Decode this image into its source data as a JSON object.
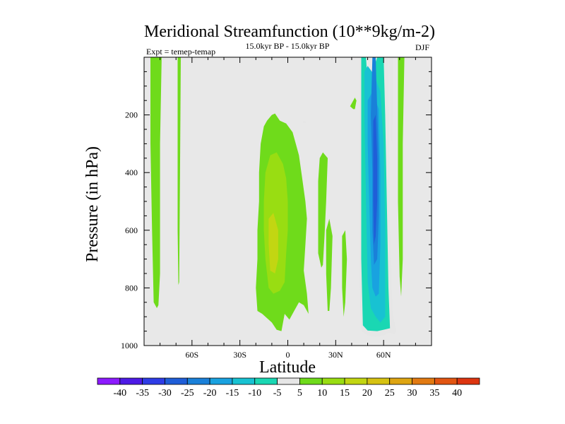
{
  "chart_data": {
    "type": "contour",
    "title": "Meridional Streamfunction (10**9kg/m-2)",
    "experiment_label": "Expt = temep-temap",
    "period_label": "15.0kyr BP - 15.0kyr BP",
    "season_label": "DJF",
    "xlabel": "Latitude",
    "ylabel": "Pressure (in hPa)",
    "xlim": [
      -90,
      90
    ],
    "ylim": [
      1000,
      0
    ],
    "x_ticks": [
      {
        "value": -60,
        "label": "60S"
      },
      {
        "value": -30,
        "label": "30S"
      },
      {
        "value": 0,
        "label": "0"
      },
      {
        "value": 30,
        "label": "30N"
      },
      {
        "value": 60,
        "label": "60N"
      }
    ],
    "y_ticks": [
      {
        "value": 200,
        "label": "200"
      },
      {
        "value": 400,
        "label": "400"
      },
      {
        "value": 600,
        "label": "600"
      },
      {
        "value": 800,
        "label": "800"
      },
      {
        "value": 1000,
        "label": "1000"
      }
    ],
    "background_color": "#e8e8e8",
    "colorbar": {
      "boundaries": [
        -40,
        -35,
        -30,
        -25,
        -20,
        -15,
        -10,
        -5,
        5,
        10,
        15,
        20,
        25,
        30,
        35,
        40
      ],
      "colors": [
        "#8c1aff",
        "#4d1ae6",
        "#2e3ce6",
        "#1f5ed8",
        "#1a80d9",
        "#19a2e0",
        "#18c2d2",
        "#1ad7b3",
        "#e6e6e6",
        "#6fdb1b",
        "#99dd12",
        "#c2d612",
        "#d6c212",
        "#dea512",
        "#e27a12",
        "#e25512",
        "#dd3510"
      ]
    },
    "regions": [
      {
        "level": 5,
        "polygon": [
          [
            -86,
            0
          ],
          [
            -79,
            0
          ],
          [
            -80,
            300
          ],
          [
            -80,
            750
          ],
          [
            -81,
            860
          ],
          [
            -82,
            870
          ],
          [
            -84,
            850
          ],
          [
            -85,
            600
          ],
          [
            -86,
            300
          ]
        ]
      },
      {
        "level": 5,
        "polygon": [
          [
            -69,
            0
          ],
          [
            -67,
            0
          ],
          [
            -67.5,
            400
          ],
          [
            -68,
            780
          ],
          [
            -68.5,
            790
          ],
          [
            -69,
            600
          ]
        ]
      },
      {
        "level": 5,
        "polygon": [
          [
            -17,
            300
          ],
          [
            -15,
            240
          ],
          [
            -13,
            220
          ],
          [
            -10,
            200
          ],
          [
            -8,
            195
          ],
          [
            -5,
            220
          ],
          [
            -1,
            230
          ],
          [
            3,
            260
          ],
          [
            5,
            300
          ],
          [
            7,
            340
          ],
          [
            9,
            420
          ],
          [
            11,
            500
          ],
          [
            12,
            560
          ],
          [
            11,
            650
          ],
          [
            10,
            740
          ],
          [
            12,
            820
          ],
          [
            13,
            890
          ],
          [
            10,
            860
          ],
          [
            7,
            850
          ],
          [
            4,
            880
          ],
          [
            1,
            910
          ],
          [
            -2,
            890
          ],
          [
            -4,
            950
          ],
          [
            -7,
            945
          ],
          [
            -10,
            920
          ],
          [
            -13,
            905
          ],
          [
            -16,
            890
          ],
          [
            -19,
            880
          ],
          [
            -20,
            800
          ],
          [
            -19,
            700
          ],
          [
            -19,
            600
          ],
          [
            -18,
            500
          ],
          [
            -18,
            400
          ]
        ]
      },
      {
        "level": 5,
        "polygon": [
          [
            20,
            350
          ],
          [
            22,
            330
          ],
          [
            25,
            350
          ],
          [
            24,
            500
          ],
          [
            23,
            620
          ],
          [
            22,
            720
          ],
          [
            21,
            730
          ],
          [
            19,
            680
          ],
          [
            19,
            550
          ],
          [
            19,
            430
          ]
        ]
      },
      {
        "level": 5,
        "polygon": [
          [
            24,
            600
          ],
          [
            26,
            560
          ],
          [
            28,
            620
          ],
          [
            27,
            800
          ],
          [
            26,
            880
          ],
          [
            25,
            880
          ],
          [
            24,
            750
          ]
        ]
      },
      {
        "level": 5,
        "polygon": [
          [
            34,
            620
          ],
          [
            36,
            600
          ],
          [
            37,
            700
          ],
          [
            36,
            850
          ],
          [
            35,
            900
          ],
          [
            34,
            800
          ]
        ]
      },
      {
        "level": 5,
        "polygon": [
          [
            39,
            170
          ],
          [
            42,
            140
          ],
          [
            43,
            150
          ],
          [
            42,
            180
          ],
          [
            41,
            180
          ]
        ]
      },
      {
        "level": 5,
        "polygon": [
          [
            69,
            0
          ],
          [
            73,
            0
          ],
          [
            72,
            300
          ],
          [
            72,
            700
          ],
          [
            71,
            830
          ],
          [
            70,
            760
          ],
          [
            69,
            500
          ]
        ]
      },
      {
        "level": 10,
        "polygon": [
          [
            -14,
            400
          ],
          [
            -11,
            340
          ],
          [
            -7,
            330
          ],
          [
            -3,
            370
          ],
          [
            -1,
            420
          ],
          [
            0,
            500
          ],
          [
            0,
            600
          ],
          [
            -1,
            680
          ],
          [
            -2,
            780
          ],
          [
            -5,
            810
          ],
          [
            -9,
            820
          ],
          [
            -12,
            800
          ],
          [
            -14,
            700
          ],
          [
            -15,
            600
          ],
          [
            -15,
            500
          ]
        ]
      },
      {
        "level": 15,
        "polygon": [
          [
            -12,
            560
          ],
          [
            -9,
            540
          ],
          [
            -6,
            600
          ],
          [
            -6,
            700
          ],
          [
            -8,
            750
          ],
          [
            -11,
            740
          ],
          [
            -12,
            650
          ]
        ]
      },
      {
        "level": -5,
        "polygon": [
          [
            10,
            230
          ],
          [
            12,
            225
          ],
          [
            10,
            220
          ],
          [
            9,
            225
          ]
        ]
      },
      {
        "level": -5,
        "polygon": [
          [
            45,
            0
          ],
          [
            48,
            0
          ],
          [
            50,
            60
          ],
          [
            60,
            0
          ],
          [
            63,
            0
          ],
          [
            63.5,
            300
          ],
          [
            64,
            600
          ],
          [
            65,
            800
          ],
          [
            66,
            900
          ],
          [
            68,
            950
          ],
          [
            67,
            960
          ],
          [
            63,
            955
          ],
          [
            60,
            965
          ],
          [
            55,
            970
          ],
          [
            50,
            965
          ],
          [
            46,
            950
          ],
          [
            45,
            800
          ],
          [
            45,
            500
          ],
          [
            45,
            200
          ]
        ]
      },
      {
        "level": -5,
        "polygon": [
          [
            63.5,
            0
          ],
          [
            66,
            0
          ],
          [
            66,
            200
          ],
          [
            65.5,
            300
          ],
          [
            64.5,
            280
          ]
        ]
      },
      {
        "level": -10,
        "polygon": [
          [
            46,
            0
          ],
          [
            49,
            0
          ],
          [
            50,
            100
          ],
          [
            56,
            0
          ],
          [
            60,
            0
          ],
          [
            61,
            200
          ],
          [
            62,
            500
          ],
          [
            63,
            800
          ],
          [
            64,
            940
          ],
          [
            60,
            945
          ],
          [
            56,
            950
          ],
          [
            50,
            948
          ],
          [
            47,
            930
          ],
          [
            46,
            700
          ],
          [
            46,
            300
          ]
        ]
      },
      {
        "level": -15,
        "polygon": [
          [
            48,
            50
          ],
          [
            50,
            30
          ],
          [
            54,
            60
          ],
          [
            58,
            120
          ],
          [
            60,
            300
          ],
          [
            61,
            600
          ],
          [
            61,
            900
          ],
          [
            58,
            920
          ],
          [
            55,
            900
          ],
          [
            52,
            870
          ],
          [
            50,
            780
          ],
          [
            49,
            500
          ],
          [
            48,
            200
          ]
        ]
      },
      {
        "level": -20,
        "polygon": [
          [
            50,
            150
          ],
          [
            53,
            120
          ],
          [
            57,
            180
          ],
          [
            58,
            400
          ],
          [
            58,
            650
          ],
          [
            57,
            820
          ],
          [
            55,
            830
          ],
          [
            53,
            800
          ],
          [
            52,
            700
          ],
          [
            51,
            500
          ],
          [
            50,
            300
          ]
        ]
      },
      {
        "level": -25,
        "polygon": [
          [
            53,
            0
          ],
          [
            55,
            0
          ],
          [
            56,
            180
          ],
          [
            57,
            350
          ],
          [
            57,
            550
          ],
          [
            56,
            700
          ],
          [
            54,
            720
          ],
          [
            53,
            600
          ],
          [
            53,
            400
          ],
          [
            52,
            200
          ]
        ]
      },
      {
        "level": -30,
        "polygon": [
          [
            53.5,
            220
          ],
          [
            55,
            200
          ],
          [
            56,
            350
          ],
          [
            56,
            500
          ],
          [
            55,
            620
          ],
          [
            54,
            650
          ],
          [
            53.5,
            500
          ]
        ]
      }
    ]
  }
}
